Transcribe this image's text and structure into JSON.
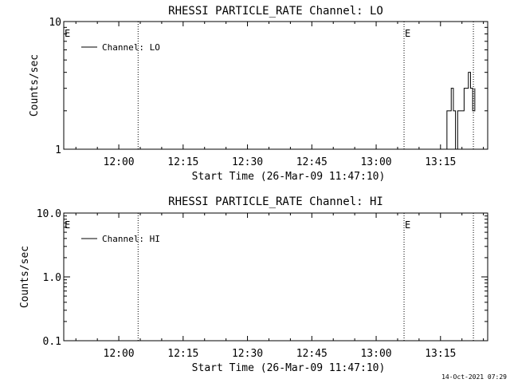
{
  "footer_timestamp": "14-Oct-2021 07:29",
  "chart_data": [
    {
      "type": "line",
      "title": "RHESSI PARTICLE_RATE Channel: LO",
      "xlabel": "Start Time (26-Mar-09 11:47:10)",
      "ylabel": "Counts/sec",
      "x_unit": "time",
      "x_range": [
        "11:47:10",
        "13:26:00"
      ],
      "x_ticks": [
        "12:00",
        "12:15",
        "12:30",
        "12:45",
        "13:00",
        "13:15"
      ],
      "y_scale": "log",
      "ylim": [
        1,
        10
      ],
      "y_ticks": [
        "1",
        "10"
      ],
      "event_markers": [
        {
          "time": "11:47:10",
          "label": "E"
        },
        {
          "time": "12:04:30",
          "label": ""
        },
        {
          "time": "13:06:30",
          "label": "E"
        },
        {
          "time": "13:22:40",
          "label": ""
        }
      ],
      "legend": {
        "position": "top-left",
        "entries": [
          "Channel: LO"
        ]
      },
      "series": [
        {
          "name": "Channel: LO",
          "x": [
            "13:16:00",
            "13:16:30",
            "13:17:00",
            "13:17:30",
            "13:18:00",
            "13:18:30",
            "13:19:00",
            "13:19:30",
            "13:20:00",
            "13:20:30",
            "13:21:00",
            "13:21:30",
            "13:22:00",
            "13:22:30",
            "13:23:00"
          ],
          "y": [
            1,
            2,
            2,
            3,
            2,
            1,
            2,
            2,
            2,
            3,
            3,
            4,
            3,
            2,
            3
          ]
        }
      ]
    },
    {
      "type": "line",
      "title": "RHESSI PARTICLE_RATE Channel: HI",
      "xlabel": "Start Time (26-Mar-09 11:47:10)",
      "ylabel": "Counts/sec",
      "x_unit": "time",
      "x_range": [
        "11:47:10",
        "13:26:00"
      ],
      "x_ticks": [
        "12:00",
        "12:15",
        "12:30",
        "12:45",
        "13:00",
        "13:15"
      ],
      "y_scale": "log",
      "ylim": [
        0.1,
        10
      ],
      "y_ticks": [
        "0.1",
        "1.0",
        "10.0"
      ],
      "event_markers": [
        {
          "time": "11:47:10",
          "label": "E"
        },
        {
          "time": "12:04:30",
          "label": ""
        },
        {
          "time": "13:06:30",
          "label": "E"
        },
        {
          "time": "13:22:40",
          "label": ""
        }
      ],
      "legend": {
        "position": "top-left",
        "entries": [
          "Channel: HI"
        ]
      },
      "series": [
        {
          "name": "Channel: HI",
          "x": [],
          "y": []
        }
      ]
    }
  ]
}
